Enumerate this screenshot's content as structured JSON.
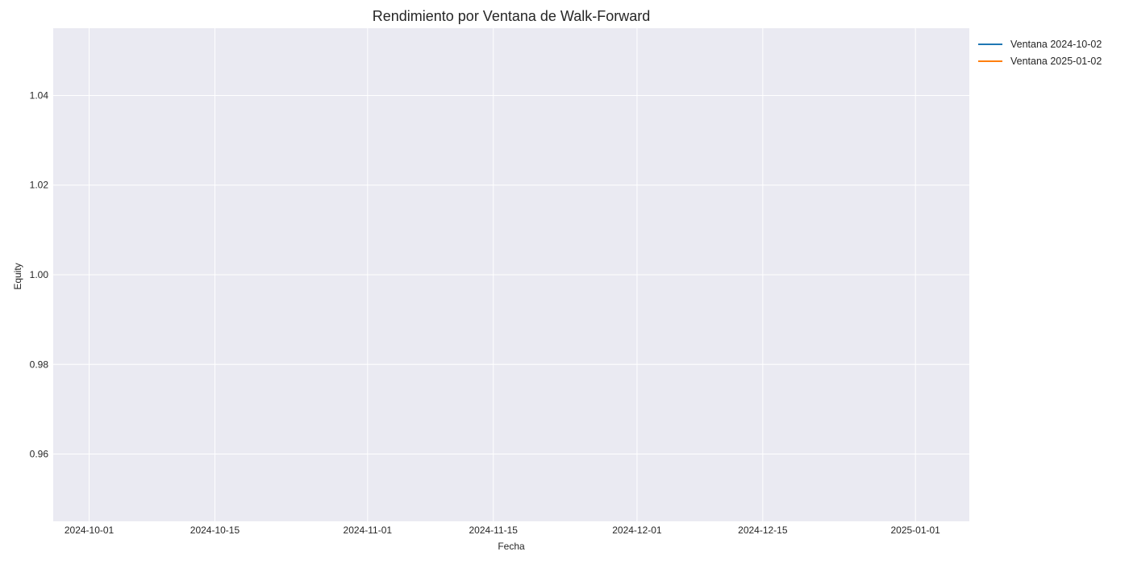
{
  "chart_data": {
    "type": "line",
    "title": "Rendimiento por Ventana de Walk-Forward",
    "xlabel": "Fecha",
    "ylabel": "Equity",
    "x_ticks": [
      "2024-10-01",
      "2024-10-15",
      "2024-11-01",
      "2024-11-15",
      "2024-12-01",
      "2024-12-15",
      "2025-01-01"
    ],
    "y_ticks": [
      0.96,
      0.98,
      1.0,
      1.02,
      1.04
    ],
    "xlim": [
      "2024-09-27",
      "2025-01-07"
    ],
    "ylim": [
      0.945,
      1.055
    ],
    "grid": true,
    "legend_position": "outside-top-right",
    "series": [
      {
        "name": "Ventana 2024-10-02",
        "color": "#1f77b4",
        "values": []
      },
      {
        "name": "Ventana 2025-01-02",
        "color": "#ff7f0e",
        "values": []
      }
    ]
  }
}
